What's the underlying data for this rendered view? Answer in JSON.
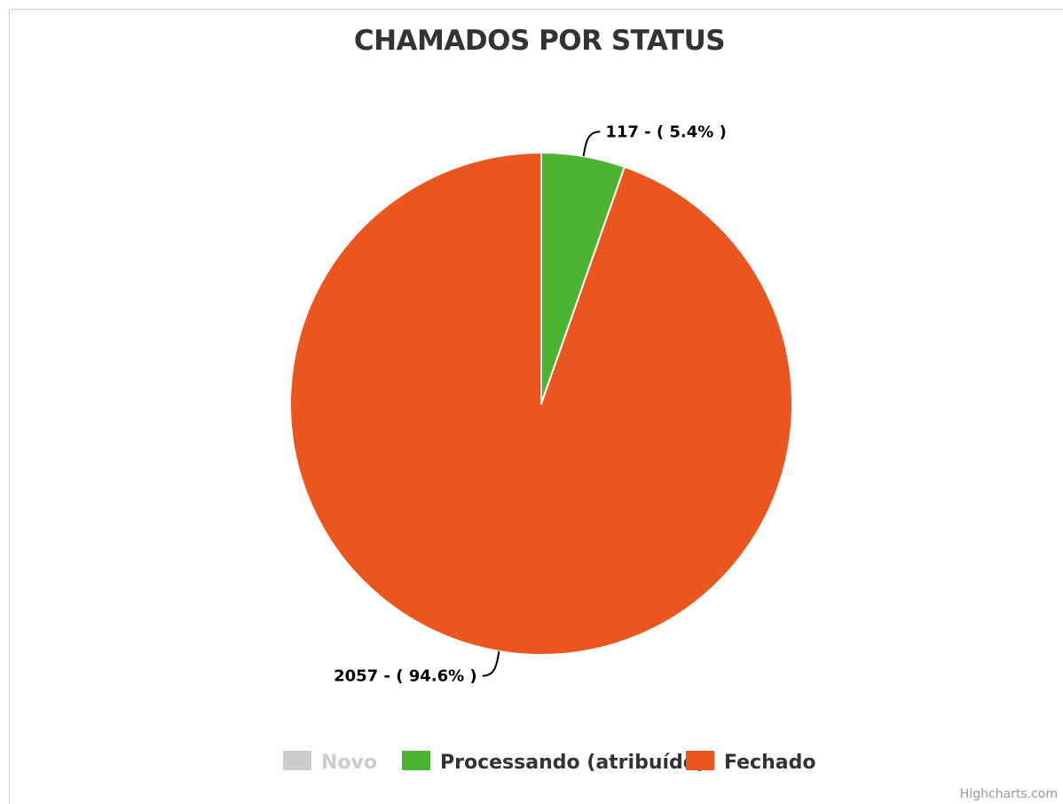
{
  "chart_data": {
    "type": "pie",
    "title": "CHAMADOS POR STATUS",
    "series": [
      {
        "name": "Novo",
        "value": 0,
        "percent": 0,
        "color": "#cccccc",
        "visible": false,
        "label": ""
      },
      {
        "name": "Processando (atribuído)",
        "value": 117,
        "percent": 5.4,
        "color": "#4db332",
        "visible": true,
        "label": "117 - ( 5.4% )"
      },
      {
        "name": "Fechado",
        "value": 2057,
        "percent": 94.6,
        "color": "#ea561e",
        "visible": true,
        "label": "2057 - ( 94.6% )"
      }
    ],
    "legend_position": "bottom-center",
    "credits": "Highcharts.com"
  }
}
